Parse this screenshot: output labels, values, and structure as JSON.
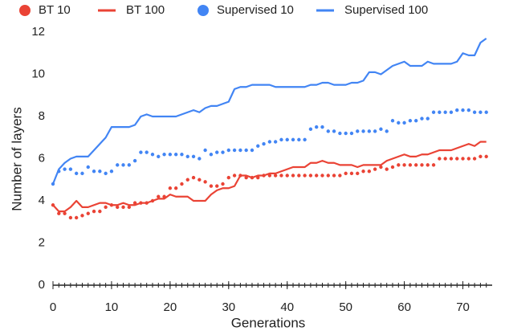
{
  "chart_data": {
    "type": "line",
    "xlabel": "Generations",
    "ylabel": "Number of layers",
    "x": [
      0,
      1,
      2,
      3,
      4,
      5,
      6,
      7,
      8,
      9,
      10,
      11,
      12,
      13,
      14,
      15,
      16,
      17,
      18,
      19,
      20,
      21,
      22,
      23,
      24,
      25,
      26,
      27,
      28,
      29,
      30,
      31,
      32,
      33,
      34,
      35,
      36,
      37,
      38,
      39,
      40,
      41,
      42,
      43,
      44,
      45,
      46,
      47,
      48,
      49,
      50,
      51,
      52,
      53,
      54,
      55,
      56,
      57,
      58,
      59,
      60,
      61,
      62,
      63,
      64,
      65,
      66,
      67,
      68,
      69,
      70,
      71,
      72,
      73,
      74
    ],
    "xlim": [
      0,
      75
    ],
    "xticks": [
      0,
      10,
      20,
      30,
      40,
      50,
      60,
      70
    ],
    "ylim": [
      0,
      12
    ],
    "yticks": [
      0,
      2,
      4,
      6,
      8,
      10,
      12
    ],
    "grid": false,
    "legend": "top",
    "series": [
      {
        "name": "BT 10",
        "color": "#ea4335",
        "style": "dots",
        "values": [
          3.8,
          3.4,
          3.4,
          3.2,
          3.2,
          3.3,
          3.4,
          3.5,
          3.5,
          3.7,
          3.8,
          3.7,
          3.7,
          3.7,
          3.9,
          3.9,
          3.9,
          4.0,
          4.2,
          4.2,
          4.6,
          4.6,
          4.8,
          5.0,
          5.1,
          5.0,
          4.9,
          4.7,
          4.7,
          4.8,
          5.1,
          5.2,
          5.2,
          5.1,
          5.1,
          5.1,
          5.2,
          5.2,
          5.2,
          5.2,
          5.2,
          5.2,
          5.2,
          5.2,
          5.2,
          5.2,
          5.2,
          5.2,
          5.2,
          5.2,
          5.3,
          5.3,
          5.3,
          5.4,
          5.4,
          5.5,
          5.6,
          5.5,
          5.6,
          5.7,
          5.7,
          5.7,
          5.7,
          5.7,
          5.7,
          5.7,
          6.0,
          6.0,
          6.0,
          6.0,
          6.0,
          6.0,
          6.0,
          6.1,
          6.1
        ]
      },
      {
        "name": "BT 100",
        "color": "#ea4335",
        "style": "line",
        "values": [
          3.8,
          3.5,
          3.5,
          3.7,
          4.0,
          3.7,
          3.7,
          3.8,
          3.9,
          3.9,
          3.8,
          3.8,
          3.9,
          3.8,
          3.8,
          3.9,
          3.9,
          4.0,
          4.1,
          4.1,
          4.3,
          4.2,
          4.2,
          4.2,
          4.0,
          4.0,
          4.0,
          4.3,
          4.5,
          4.6,
          4.6,
          4.7,
          5.2,
          5.2,
          5.1,
          5.2,
          5.2,
          5.3,
          5.3,
          5.4,
          5.5,
          5.6,
          5.6,
          5.6,
          5.8,
          5.8,
          5.9,
          5.8,
          5.8,
          5.7,
          5.7,
          5.7,
          5.6,
          5.7,
          5.7,
          5.7,
          5.7,
          5.9,
          6.0,
          6.1,
          6.2,
          6.1,
          6.1,
          6.2,
          6.2,
          6.3,
          6.4,
          6.4,
          6.4,
          6.5,
          6.6,
          6.7,
          6.6,
          6.8,
          6.8
        ]
      },
      {
        "name": "Supervised 10",
        "color": "#4285f4",
        "style": "dots",
        "values": [
          4.8,
          5.4,
          5.5,
          5.5,
          5.3,
          5.3,
          5.6,
          5.4,
          5.4,
          5.3,
          5.4,
          5.7,
          5.7,
          5.7,
          5.9,
          6.3,
          6.3,
          6.2,
          6.1,
          6.2,
          6.2,
          6.2,
          6.2,
          6.1,
          6.1,
          6.0,
          6.4,
          6.2,
          6.3,
          6.3,
          6.4,
          6.4,
          6.4,
          6.4,
          6.4,
          6.6,
          6.7,
          6.8,
          6.8,
          6.9,
          6.9,
          6.9,
          6.9,
          6.9,
          7.4,
          7.5,
          7.5,
          7.3,
          7.3,
          7.2,
          7.2,
          7.2,
          7.3,
          7.3,
          7.3,
          7.3,
          7.4,
          7.3,
          7.8,
          7.7,
          7.7,
          7.8,
          7.8,
          7.9,
          7.9,
          8.2,
          8.2,
          8.2,
          8.2,
          8.3,
          8.3,
          8.3,
          8.2,
          8.2,
          8.2
        ]
      },
      {
        "name": "Supervised 100",
        "color": "#4285f4",
        "style": "line",
        "values": [
          4.8,
          5.5,
          5.8,
          6.0,
          6.1,
          6.1,
          6.1,
          6.4,
          6.7,
          7.0,
          7.5,
          7.5,
          7.5,
          7.5,
          7.6,
          8.0,
          8.1,
          8.0,
          8.0,
          8.0,
          8.0,
          8.0,
          8.1,
          8.2,
          8.3,
          8.2,
          8.4,
          8.5,
          8.5,
          8.6,
          8.7,
          9.3,
          9.4,
          9.4,
          9.5,
          9.5,
          9.5,
          9.5,
          9.4,
          9.4,
          9.4,
          9.4,
          9.4,
          9.4,
          9.5,
          9.5,
          9.6,
          9.6,
          9.5,
          9.5,
          9.5,
          9.6,
          9.6,
          9.7,
          10.1,
          10.1,
          10.0,
          10.2,
          10.4,
          10.5,
          10.6,
          10.4,
          10.4,
          10.4,
          10.6,
          10.5,
          10.5,
          10.5,
          10.5,
          10.6,
          11.0,
          10.9,
          10.9,
          11.5,
          11.7
        ]
      }
    ]
  }
}
